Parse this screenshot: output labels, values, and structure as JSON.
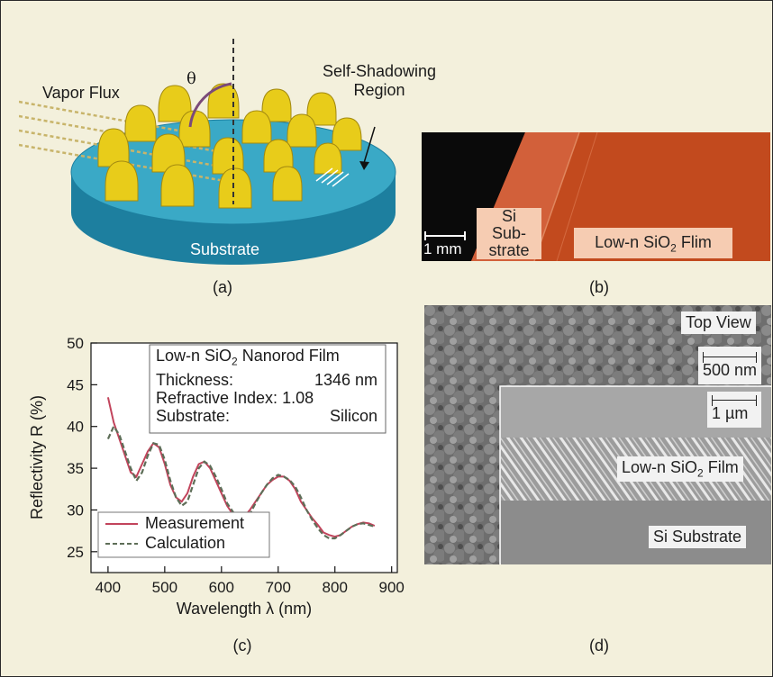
{
  "panel_a": {
    "caption": "(a)",
    "vapor_flux_label": "Vapor Flux",
    "theta_label": "θ",
    "shadow_label_line1": "Self-Shadowing",
    "shadow_label_line2": "Region",
    "substrate_label": "Substrate"
  },
  "panel_b": {
    "caption": "(b)",
    "si_label_line1": "Si",
    "si_label_line2": "Sub-",
    "si_label_line3": "strate",
    "film_label": "Low-n SiO",
    "film_label_sub": "2",
    "film_label_end": " Flim",
    "scale_label": "1 mm"
  },
  "panel_c": {
    "caption": "(c)",
    "info_title": "Low-n SiO",
    "info_title_sub": "2",
    "info_title_end": " Nanorod Film",
    "info_thickness_key": "Thickness:",
    "info_thickness_val": "1346 nm",
    "info_index_key": "Refractive Index:",
    "info_index_val": "1.08",
    "info_substrate_key": "Substrate:",
    "info_substrate_val": "Silicon",
    "legend_measurement": "Measurement",
    "legend_calculation": "Calculation",
    "colors": {
      "measurement": "#c2445c",
      "calculation": "#5e6e58"
    }
  },
  "panel_d": {
    "caption": "(d)",
    "top_view": "Top View",
    "scale_top": "500 nm",
    "scale_cross": "1 µm",
    "film_label": "Low-n SiO",
    "film_label_sub": "2",
    "film_label_end": " Film",
    "substrate_label": "Si Substrate"
  },
  "chart_data": {
    "type": "line",
    "xlabel": "Wavelength λ (nm)",
    "ylabel": "Reflectivity R (%)",
    "xlim": [
      370,
      910
    ],
    "ylim": [
      22.5,
      50
    ],
    "xticks": [
      400,
      500,
      600,
      700,
      800,
      900
    ],
    "yticks": [
      25,
      30,
      35,
      40,
      45,
      50
    ],
    "grid": false,
    "legend": "bottom-left",
    "series": [
      {
        "name": "Measurement",
        "x": [
          400,
          410,
          420,
          430,
          440,
          450,
          460,
          470,
          480,
          490,
          500,
          510,
          520,
          530,
          540,
          550,
          560,
          570,
          580,
          590,
          600,
          610,
          620,
          630,
          640,
          650,
          660,
          670,
          680,
          690,
          700,
          710,
          720,
          730,
          740,
          750,
          760,
          770,
          780,
          790,
          800,
          810,
          820,
          830,
          840,
          850,
          860,
          870
        ],
        "y": [
          43.5,
          40.5,
          38.5,
          36.5,
          34.5,
          34.0,
          35.5,
          37.0,
          38.0,
          37.5,
          35.5,
          33.0,
          31.5,
          31.0,
          32.0,
          34.0,
          35.5,
          35.8,
          35.0,
          33.5,
          32.0,
          30.5,
          29.5,
          29.0,
          29.2,
          30.0,
          31.0,
          32.0,
          33.0,
          33.6,
          34.0,
          34.0,
          33.5,
          32.5,
          31.0,
          30.0,
          29.0,
          28.2,
          27.3,
          27.0,
          26.8,
          27.0,
          27.5,
          28.0,
          28.3,
          28.5,
          28.4,
          28.1
        ]
      },
      {
        "name": "Calculation",
        "x": [
          400,
          410,
          420,
          430,
          440,
          450,
          460,
          470,
          480,
          490,
          500,
          510,
          520,
          530,
          540,
          550,
          560,
          570,
          580,
          590,
          600,
          610,
          620,
          630,
          640,
          650,
          660,
          670,
          680,
          690,
          700,
          710,
          720,
          730,
          740,
          750,
          760,
          770,
          780,
          790,
          800,
          810,
          820,
          830,
          840,
          850,
          860,
          870
        ],
        "y": [
          38.5,
          40.0,
          39.0,
          37.0,
          35.0,
          33.5,
          34.5,
          36.5,
          38.0,
          37.8,
          36.0,
          33.5,
          31.5,
          30.5,
          31.0,
          33.0,
          35.0,
          35.8,
          35.3,
          34.0,
          32.5,
          30.8,
          29.8,
          29.0,
          28.8,
          29.5,
          30.8,
          32.0,
          33.0,
          33.8,
          34.2,
          34.0,
          33.6,
          32.8,
          31.5,
          30.0,
          28.8,
          27.8,
          27.0,
          26.6,
          26.6,
          27.0,
          27.5,
          28.0,
          28.3,
          28.4,
          28.2,
          28.0
        ]
      }
    ]
  }
}
